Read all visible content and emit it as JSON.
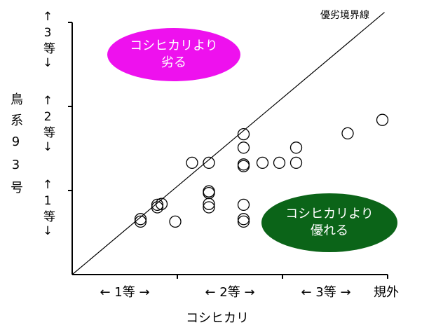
{
  "chart_data": {
    "type": "scatter",
    "x_title": "コシヒカリ",
    "y_title": "鳥系93号",
    "x_grade_labels": [
      "← 1等 →",
      "← 2等 →",
      "← 3等 →",
      "規外"
    ],
    "y_grade_labels": [
      "↑1等↓",
      "↑2等↓",
      "↑3等↓"
    ],
    "xlim": [
      0,
      3
    ],
    "ylim": [
      0,
      3
    ],
    "xticks": [
      1,
      2,
      3
    ],
    "yticks": [
      1,
      2,
      3
    ],
    "x": [
      0.65,
      0.65,
      0.81,
      0.81,
      0.85,
      0.98,
      1.14,
      1.3,
      1.3,
      1.3,
      1.3,
      1.3,
      1.63,
      1.63,
      1.63,
      1.63,
      1.63,
      1.63,
      1.63,
      1.81,
      1.97,
      2.13,
      2.13,
      2.62,
      2.95
    ],
    "values": [
      0.66,
      0.63,
      0.83,
      0.8,
      0.84,
      0.63,
      1.33,
      1.33,
      0.99,
      0.97,
      0.84,
      0.8,
      1.67,
      1.51,
      1.31,
      1.29,
      0.83,
      0.66,
      0.63,
      1.33,
      1.33,
      1.51,
      1.33,
      1.68,
      1.84
    ],
    "color": "#000000",
    "boundary_line": {
      "label": "優劣境界線",
      "x": [
        0,
        2.97
      ],
      "y": [
        0,
        3.12
      ]
    },
    "annotations": [
      {
        "lines": [
          "コシヒカリより",
          "劣る"
        ],
        "color": "#ee11ee"
      },
      {
        "lines": [
          "コシヒカリより",
          "優れる"
        ],
        "color": "#0b6418"
      }
    ]
  }
}
